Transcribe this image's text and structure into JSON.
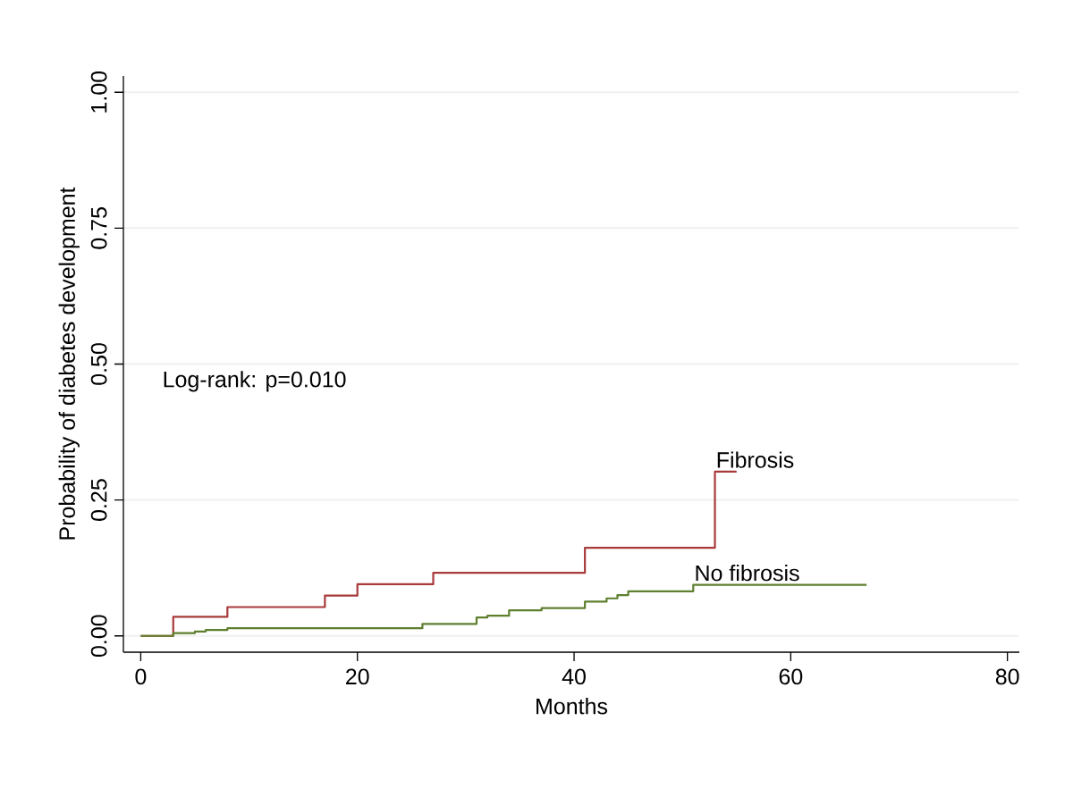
{
  "chart_data": {
    "type": "step",
    "xlabel": "Months",
    "ylabel": "Probability of diabetes development",
    "annotations": [
      "Log-rank: p=0.010"
    ],
    "series": [
      {
        "name": "Fibrosis",
        "color": "#a83a3a",
        "x": [
          0,
          3,
          8,
          17,
          20,
          27,
          41,
          53,
          55
        ],
        "values": [
          0,
          0.035,
          0.053,
          0.074,
          0.095,
          0.116,
          0.162,
          0.302,
          0.302
        ]
      },
      {
        "name": "No fibrosis",
        "color": "#5e7f2e",
        "x": [
          0,
          3,
          5,
          6,
          8,
          26,
          31,
          32,
          34,
          37,
          41,
          43,
          44,
          45,
          51,
          67
        ],
        "values": [
          0,
          0.005,
          0.008,
          0.011,
          0.014,
          0.022,
          0.034,
          0.037,
          0.047,
          0.051,
          0.063,
          0.069,
          0.075,
          0.082,
          0.094,
          0.094
        ]
      }
    ],
    "xlim": [
      -1.6,
      81.1
    ],
    "ylim": [
      -0.03,
      1.03
    ],
    "xticks": [
      0,
      20,
      40,
      60,
      80
    ],
    "yticks": [
      {
        "value": 0,
        "label": "0.00"
      },
      {
        "value": 0.25,
        "label": "0.25"
      },
      {
        "value": 0.5,
        "label": "0.50"
      },
      {
        "value": 0.75,
        "label": "0.75"
      },
      {
        "value": 1,
        "label": "1.00"
      }
    ],
    "grid": "y",
    "line_style": "solid"
  }
}
